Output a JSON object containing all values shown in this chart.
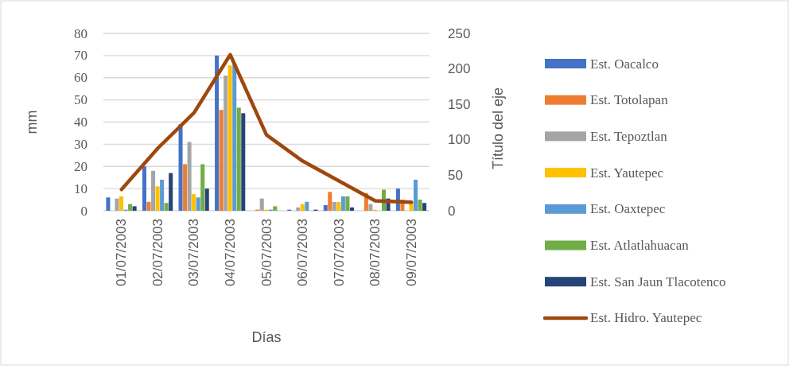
{
  "chart_data": {
    "type": "bar",
    "categories": [
      "01/07/2003",
      "02/07/2003",
      "03/07/2003",
      "04/07/2003",
      "05/07/2003",
      "06/07/2003",
      "07/07/2003",
      "08/07/2003",
      "09/07/2003"
    ],
    "xlabel": "Días",
    "ylabel": "mm",
    "y2label": "Título del eje",
    "ylim": [
      0,
      80
    ],
    "yticks": [
      0,
      10,
      20,
      30,
      40,
      50,
      60,
      70,
      80
    ],
    "y2lim": [
      0,
      250
    ],
    "y2ticks": [
      0,
      50,
      100,
      150,
      200,
      250
    ],
    "grid": "y",
    "legend": "right",
    "series": [
      {
        "name": "Est. Oacalco",
        "color": "#4472c4",
        "values": [
          6,
          20,
          39,
          70,
          0,
          0.5,
          2.5,
          0,
          10
        ]
      },
      {
        "name": "Est. Totolapan",
        "color": "#ed7d31",
        "values": [
          0,
          4,
          21,
          45.5,
          0.5,
          0,
          8.5,
          8,
          5
        ]
      },
      {
        "name": "Est. Tepoztlan",
        "color": "#a5a5a5",
        "values": [
          5.5,
          18,
          31,
          61,
          5.5,
          1.5,
          4,
          3,
          0
        ]
      },
      {
        "name": "Est. Yautepec",
        "color": "#ffc000",
        "values": [
          6.5,
          11,
          7.5,
          65.5,
          0.5,
          3,
          4,
          0.5,
          4
        ]
      },
      {
        "name": "Est. Oaxtepec",
        "color": "#5b9bd5",
        "values": [
          0.5,
          14,
          6,
          66,
          0.5,
          4,
          6.5,
          0,
          14
        ]
      },
      {
        "name": "Est. Atlatlahuacan",
        "color": "#70ad47",
        "values": [
          3,
          3.5,
          21,
          46.5,
          2,
          0,
          6.5,
          9.5,
          5
        ]
      },
      {
        "name": "Est. San Jaun Tlacotenco",
        "color": "#264478",
        "values": [
          2,
          17,
          10,
          44,
          0,
          0.5,
          1.5,
          5.5,
          3.5
        ]
      },
      {
        "name": "Est. Hidro. Yautepec",
        "color": "#9e480e",
        "type": "line",
        "axis": "y2",
        "values": [
          30,
          88,
          138,
          220,
          107,
          70,
          42,
          14,
          12
        ]
      }
    ]
  }
}
